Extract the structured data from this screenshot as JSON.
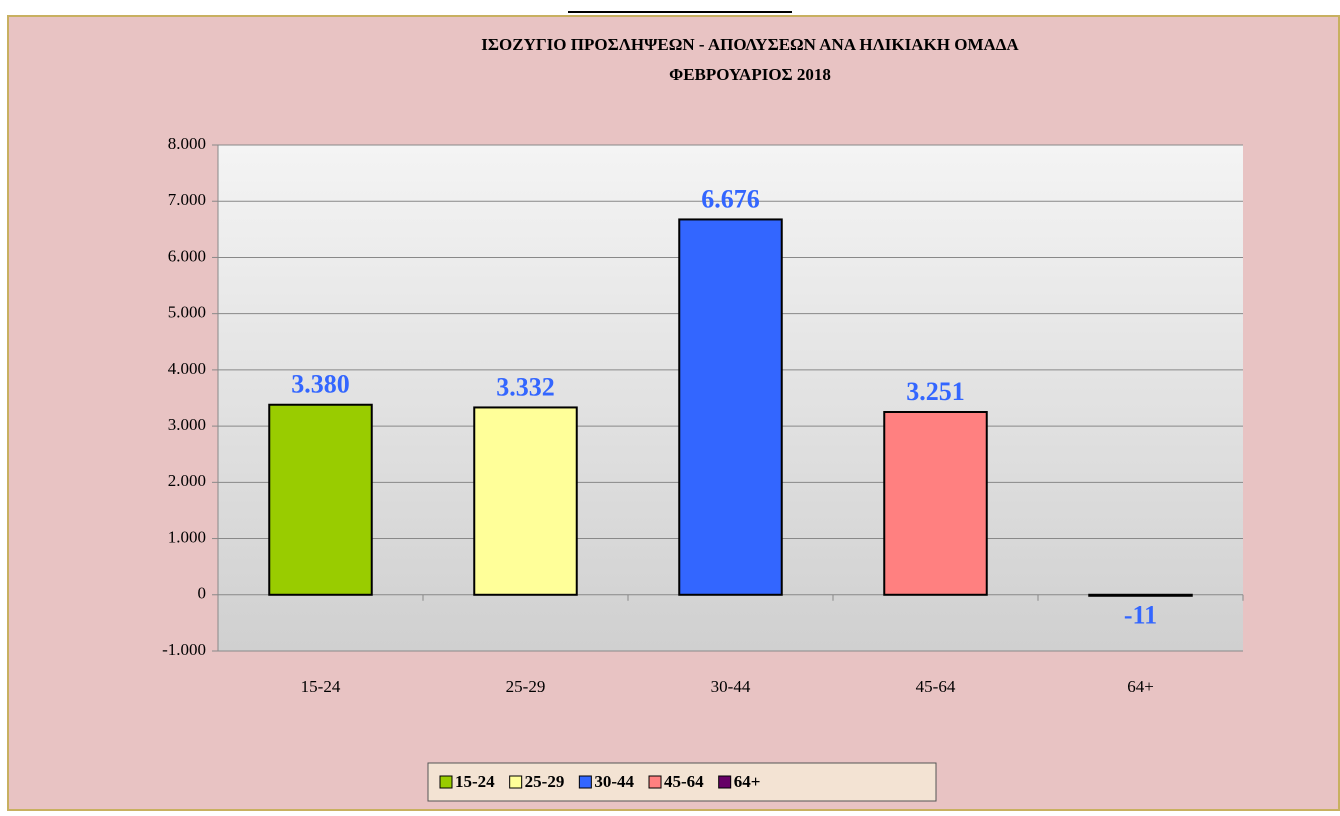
{
  "chart_data": {
    "type": "bar",
    "title": "ΙΣΟΖΥΓΙΟ  ΠΡΟΣΛΗΨΕΩΝ - ΑΠΟΛΥΣΕΩΝ ΑΝΑ ΗΛΙΚΙΑΚΗ ΟΜΑΔΑ",
    "subtitle": "ΦΕΒΡΟΥΑΡΙΟΣ  2018",
    "categories": [
      "15-24",
      "25-29",
      "30-44",
      "45-64",
      "64+"
    ],
    "values": [
      3380,
      3332,
      6676,
      3251,
      -11
    ],
    "value_labels": [
      "3.380",
      "3.332",
      "6.676",
      "3.251",
      "-11"
    ],
    "colors": [
      "#99cc00",
      "#ffff99",
      "#3366ff",
      "#ff8080",
      "#660066"
    ],
    "ylim": [
      -1000,
      8000
    ],
    "yticks": [
      {
        "value": -1000,
        "label": "-1.000"
      },
      0,
      {
        "value": 1000,
        "label": "1.000"
      },
      {
        "value": 2000,
        "label": "2.000"
      },
      {
        "value": 3000,
        "label": "3.000"
      },
      {
        "value": 4000,
        "label": "4.000"
      },
      {
        "value": 5000,
        "label": "5.000"
      },
      {
        "value": 6000,
        "label": "6.000"
      },
      {
        "value": 7000,
        "label": "7.000"
      },
      {
        "value": 8000,
        "label": "8.000"
      }
    ],
    "grid": true,
    "legend": "bottom"
  }
}
